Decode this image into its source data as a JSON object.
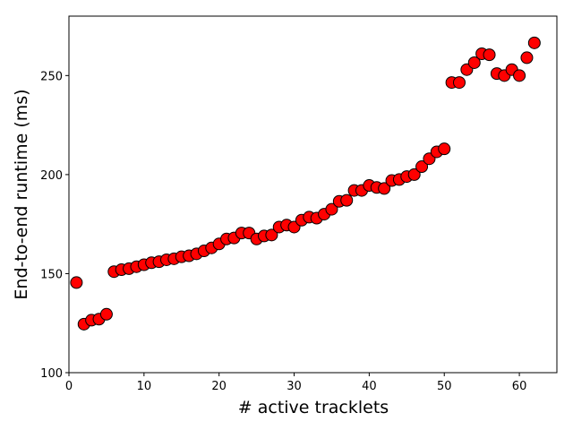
{
  "chart_data": {
    "type": "scatter",
    "title": "",
    "xlabel": "# active tracklets",
    "ylabel": "End-to-end runtime (ms)",
    "xlim": [
      0,
      65
    ],
    "ylim": [
      100,
      280
    ],
    "x_ticks": [
      0,
      10,
      20,
      30,
      40,
      50,
      60
    ],
    "y_ticks": [
      100,
      150,
      200,
      250
    ],
    "x_tick_labels": [
      "0",
      "10",
      "20",
      "30",
      "40",
      "50",
      "60"
    ],
    "y_tick_labels": [
      "100",
      "150",
      "200",
      "250"
    ],
    "grid": false,
    "legend": "none",
    "marker": {
      "fill": "#ff0000",
      "edge": "#000000"
    },
    "series": [
      {
        "x": [
          1,
          2,
          3,
          4,
          5,
          6,
          7,
          8,
          9,
          10,
          11,
          12,
          13,
          14,
          15,
          16,
          17,
          18,
          19,
          20,
          21,
          22,
          23,
          24,
          25,
          26,
          27,
          28,
          29,
          30,
          31,
          32,
          33,
          34,
          35,
          36,
          37,
          38,
          39,
          40,
          41,
          42,
          43,
          44,
          45,
          46,
          47,
          48,
          49,
          50,
          51,
          52,
          53,
          54,
          55,
          56,
          57,
          58,
          59,
          60,
          61,
          62
        ],
        "y": [
          145.5,
          124.5,
          126.5,
          127,
          129.5,
          151,
          152,
          152.5,
          153.5,
          154.5,
          155.5,
          156,
          157,
          157.5,
          158.5,
          159,
          160,
          161.5,
          163,
          165,
          167.5,
          168,
          170.5,
          170.5,
          167.5,
          169,
          169.5,
          173.5,
          174.5,
          173.5,
          177,
          178.5,
          178,
          180,
          182.5,
          186.5,
          187,
          192,
          192,
          194.5,
          193.5,
          193,
          197,
          197.5,
          199,
          200,
          204,
          208,
          211.5,
          213,
          246.5,
          246.5,
          253,
          256.5,
          261,
          260.5,
          251,
          250,
          253,
          250,
          259,
          266.5
        ]
      }
    ]
  }
}
